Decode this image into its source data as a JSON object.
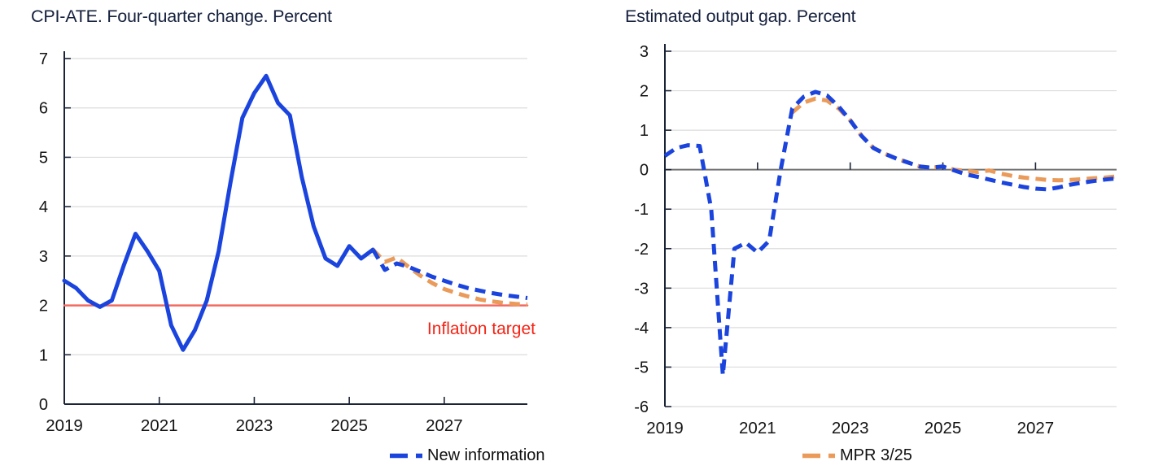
{
  "legend": {
    "items": [
      {
        "label": "New information",
        "color": "#1a44dd",
        "style": "dashed"
      },
      {
        "label": "MPR 3/25",
        "color": "#ea9a59",
        "style": "dashed"
      }
    ]
  },
  "colors": {
    "blue": "#1a44dd",
    "orange": "#ea9a59",
    "target_line_red": "#f3695f",
    "annotation_red": "#f42314",
    "title_navy": "#15203d",
    "axis_dark": "#1b2437",
    "zero_line_gray": "#707070",
    "gridline_gray": "#dcdcdc",
    "tick_label": "#141414"
  },
  "chart_data": [
    {
      "type": "line",
      "title": "CPI-ATE. Four-quarter change. Percent",
      "xlabel": "",
      "ylabel": "",
      "ylim": [
        0,
        7
      ],
      "yticks": [
        0,
        1,
        2,
        3,
        4,
        5,
        6,
        7
      ],
      "xlim": [
        2019,
        2028.75
      ],
      "xticks": [
        2019,
        2021,
        2023,
        2025,
        2027
      ],
      "baseline_value": 0,
      "grid": true,
      "annotation": {
        "text": "Inflation target",
        "color": "#f42314"
      },
      "series": [
        {
          "name": "Inflation target",
          "color": "#f3695f",
          "dashed": false,
          "width": 2.5,
          "start": 2019,
          "step": 9.75,
          "values": [
            2,
            2
          ]
        },
        {
          "name": "CPI-ATE history",
          "color": "#1a44dd",
          "dashed": false,
          "width": 5,
          "start": 2019,
          "step": 0.25,
          "values": [
            2.5,
            2.35,
            2.1,
            1.97,
            2.1,
            2.8,
            3.45,
            3.1,
            2.7,
            1.6,
            1.1,
            1.5,
            2.1,
            3.1,
            4.5,
            5.8,
            6.3,
            6.65,
            6.1,
            5.85,
            4.6,
            3.6,
            2.95,
            2.8,
            3.2,
            2.95,
            3.13
          ]
        },
        {
          "name": "MPR 3/25",
          "color": "#ea9a59",
          "dashed": true,
          "width": 5,
          "start": 2025.5,
          "step": 0.25,
          "values": [
            3.13,
            2.88,
            2.97,
            2.78,
            2.6,
            2.45,
            2.33,
            2.25,
            2.18,
            2.12,
            2.08,
            2.05,
            2.03,
            2.02
          ]
        },
        {
          "name": "New information",
          "color": "#1a44dd",
          "dashed": true,
          "width": 5,
          "start": 2025.5,
          "step": 0.25,
          "values": [
            3.13,
            2.72,
            2.85,
            2.78,
            2.68,
            2.58,
            2.5,
            2.42,
            2.35,
            2.3,
            2.25,
            2.21,
            2.18,
            2.15
          ]
        }
      ]
    },
    {
      "type": "line",
      "title": "Estimated output gap. Percent",
      "xlabel": "",
      "ylabel": "",
      "ylim": [
        -6,
        3
      ],
      "yticks": [
        -6,
        -5,
        -4,
        -3,
        -2,
        -1,
        0,
        1,
        2,
        3
      ],
      "xlim": [
        2019,
        2028.75
      ],
      "xticks": [
        2019,
        2021,
        2023,
        2025,
        2027
      ],
      "baseline_value": 0,
      "grid": true,
      "series": [
        {
          "name": "MPR 3/25",
          "color": "#ea9a59",
          "dashed": true,
          "width": 5,
          "start": 2021.75,
          "step": 0.25,
          "values": [
            1.45,
            1.7,
            1.8,
            1.75,
            1.55,
            1.25,
            0.85,
            0.55,
            0.4,
            0.28,
            0.18,
            0.08,
            0.05,
            0.08,
            0.0,
            -0.03,
            -0.06,
            -0.02,
            -0.1,
            -0.16,
            -0.2,
            -0.23,
            -0.26,
            -0.27,
            -0.26,
            -0.24,
            -0.22,
            -0.2,
            -0.17
          ]
        },
        {
          "name": "New information",
          "color": "#1a44dd",
          "dashed": true,
          "width": 5,
          "start": 2019,
          "step": 0.25,
          "values": [
            0.35,
            0.55,
            0.62,
            0.6,
            -1.0,
            -5.2,
            -2.0,
            -1.85,
            -2.1,
            -1.8,
            0.0,
            1.55,
            1.85,
            1.97,
            1.88,
            1.6,
            1.25,
            0.85,
            0.55,
            0.4,
            0.28,
            0.18,
            0.08,
            0.05,
            0.08,
            -0.02,
            -0.12,
            -0.18,
            -0.25,
            -0.32,
            -0.38,
            -0.44,
            -0.48,
            -0.5,
            -0.45,
            -0.38,
            -0.33,
            -0.29,
            -0.25,
            -0.22
          ]
        }
      ]
    }
  ]
}
